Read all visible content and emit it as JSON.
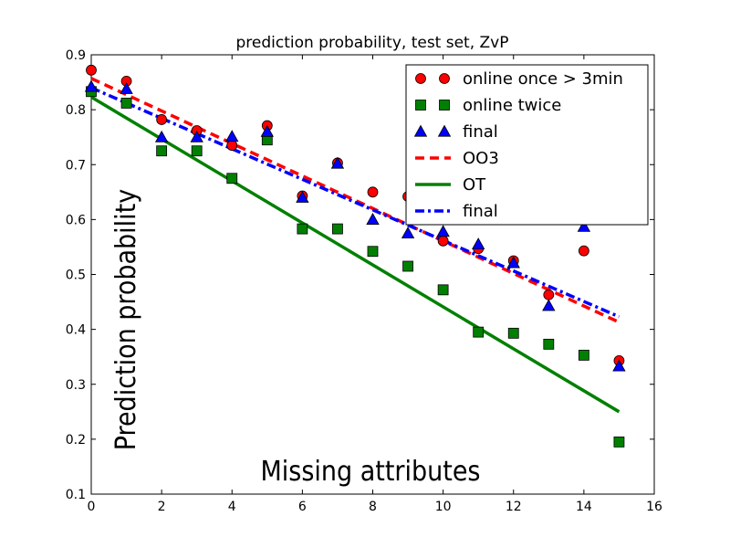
{
  "chart_data": {
    "type": "scatter",
    "title": "prediction probability, test set, ZvP",
    "xlabel": "Missing attributes",
    "ylabel": "Prediction probability",
    "xlim": [
      0,
      16
    ],
    "ylim": [
      0.1,
      0.9
    ],
    "xticks": [
      0,
      2,
      4,
      6,
      8,
      10,
      12,
      14,
      16
    ],
    "xtick_labels": [
      "0",
      "2",
      "4",
      "6",
      "8",
      "10",
      "12",
      "14",
      "16"
    ],
    "yticks": [
      0.1,
      0.2,
      0.3,
      0.4,
      0.5,
      0.6,
      0.7,
      0.8,
      0.9
    ],
    "ytick_labels": [
      "0.1",
      "0.2",
      "0.3",
      "0.4",
      "0.5",
      "0.6",
      "0.7",
      "0.8",
      "0.9"
    ],
    "legend_position": "top-right",
    "series": [
      {
        "name": "online once > 3min",
        "kind": "points",
        "marker": "circle",
        "color": "#ff0000",
        "x": [
          0,
          1,
          2,
          3,
          4,
          5,
          6,
          7,
          8,
          9,
          10,
          11,
          12,
          13,
          14,
          15
        ],
        "y": [
          0.872,
          0.852,
          0.782,
          0.762,
          0.735,
          0.771,
          0.643,
          0.703,
          0.65,
          0.642,
          0.561,
          0.547,
          0.525,
          0.463,
          0.543,
          0.343
        ]
      },
      {
        "name": "online twice",
        "kind": "points",
        "marker": "square",
        "color": "#008000",
        "x": [
          0,
          1,
          2,
          3,
          4,
          5,
          6,
          7,
          8,
          9,
          10,
          11,
          12,
          13,
          14,
          15
        ],
        "y": [
          0.833,
          0.812,
          0.725,
          0.725,
          0.675,
          0.745,
          0.583,
          0.583,
          0.542,
          0.515,
          0.472,
          0.395,
          0.393,
          0.373,
          0.353,
          0.195
        ]
      },
      {
        "name": "final",
        "kind": "points",
        "marker": "triangle",
        "color": "#0000ff",
        "x": [
          0,
          1,
          2,
          3,
          4,
          5,
          6,
          7,
          8,
          9,
          10,
          11,
          12,
          13,
          14,
          15
        ],
        "y": [
          0.842,
          0.838,
          0.75,
          0.75,
          0.751,
          0.76,
          0.64,
          0.702,
          0.6,
          0.575,
          0.578,
          0.555,
          0.521,
          0.443,
          0.587,
          0.333
        ]
      },
      {
        "name": "OO3",
        "kind": "line",
        "style": "dashed",
        "color": "#ff0000",
        "x": [
          0,
          15
        ],
        "y": [
          0.857,
          0.413
        ]
      },
      {
        "name": "OT",
        "kind": "line",
        "style": "solid",
        "color": "#008000",
        "x": [
          0,
          15
        ],
        "y": [
          0.823,
          0.25
        ]
      },
      {
        "name": "final",
        "kind": "line",
        "style": "dashdot",
        "color": "#0000ff",
        "x": [
          0,
          15
        ],
        "y": [
          0.84,
          0.423
        ]
      }
    ]
  }
}
